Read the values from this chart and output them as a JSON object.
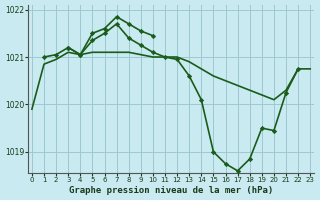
{
  "title": "Graphe pression niveau de la mer (hPa)",
  "background_color": "#c9eaf0",
  "plot_bg_color": "#c9eaf0",
  "grid_color": "#9dc8d2",
  "line_color": "#1a5c1a",
  "marker_color": "#1a5c1a",
  "ylim": [
    1018.55,
    1022.1
  ],
  "xlim": [
    -0.3,
    23.3
  ],
  "yticks": [
    1019,
    1020,
    1021,
    1022
  ],
  "xticks": [
    0,
    1,
    2,
    3,
    4,
    5,
    6,
    7,
    8,
    9,
    10,
    11,
    12,
    13,
    14,
    15,
    16,
    17,
    18,
    19,
    20,
    21,
    22,
    23
  ],
  "series": [
    {
      "x": [
        0,
        1,
        2,
        3,
        4,
        5,
        6,
        7,
        8,
        9,
        10,
        11,
        12,
        13,
        14,
        15,
        16,
        17,
        18,
        19,
        20,
        21,
        22,
        23
      ],
      "y": [
        1019.9,
        1020.85,
        1020.95,
        1021.1,
        1021.05,
        1021.1,
        1021.1,
        1021.1,
        1021.1,
        1021.05,
        1021.0,
        1021.0,
        1021.0,
        1020.9,
        1020.75,
        1020.6,
        1020.5,
        1020.4,
        1020.3,
        1020.2,
        1020.1,
        1020.3,
        1020.75,
        1020.75
      ],
      "marker": false,
      "linewidth": 1.2
    },
    {
      "x": [
        1,
        2,
        3,
        4,
        5,
        6,
        7,
        8,
        9,
        10,
        11,
        12,
        13,
        14,
        15,
        16,
        17,
        18,
        19,
        20,
        21,
        22
      ],
      "y": [
        1021.0,
        1021.05,
        1021.2,
        1021.05,
        1021.35,
        1021.5,
        1021.7,
        1021.4,
        1021.25,
        1021.1,
        1021.0,
        1020.95,
        1020.6,
        1020.1,
        1019.0,
        1018.75,
        1018.6,
        1018.85,
        1019.5,
        1019.45,
        1020.25,
        1020.75
      ],
      "marker": true,
      "linewidth": 1.2
    },
    {
      "x": [
        3,
        4,
        5,
        6,
        7,
        8,
        9,
        10
      ],
      "y": [
        1021.2,
        1021.05,
        1021.5,
        1021.6,
        1021.85,
        1021.7,
        1021.55,
        1021.45
      ],
      "marker": true,
      "linewidth": 1.2
    }
  ]
}
